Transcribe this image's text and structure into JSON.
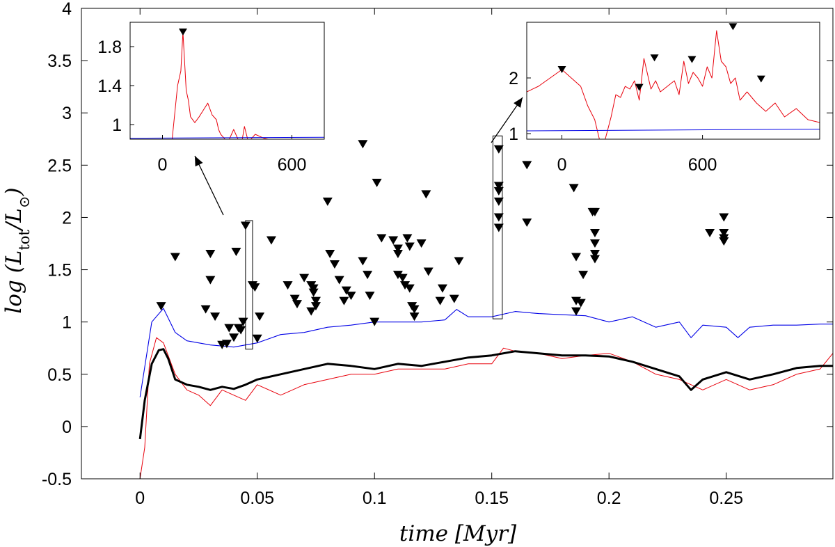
{
  "chart_data": {
    "type": "line",
    "xlabel": "time [Myr]",
    "ylabel": "log (L_tot/L_⊙)",
    "xlim": [
      -0.025,
      0.2955
    ],
    "ylim": [
      -0.5,
      4
    ],
    "xticks": [
      {
        "v": 0,
        "label": "0"
      },
      {
        "v": 0.05,
        "label": "0.05"
      },
      {
        "v": 0.1,
        "label": "0.1"
      },
      {
        "v": 0.15,
        "label": "0.15"
      },
      {
        "v": 0.2,
        "label": "0.2"
      },
      {
        "v": 0.25,
        "label": "0.25"
      }
    ],
    "yticks": [
      {
        "v": -0.5,
        "label": "-0.5"
      },
      {
        "v": 0,
        "label": "0"
      },
      {
        "v": 0.5,
        "label": "0.5"
      },
      {
        "v": 1,
        "label": "1"
      },
      {
        "v": 1.5,
        "label": "1.5"
      },
      {
        "v": 2,
        "label": "2"
      },
      {
        "v": 2.5,
        "label": "2.5"
      },
      {
        "v": 3,
        "label": "3"
      },
      {
        "v": 3.5,
        "label": "3.5"
      },
      {
        "v": 4,
        "label": "4"
      }
    ],
    "grid": false,
    "series": [
      {
        "color": "#e8000b",
        "x": [
          0.0,
          0.002,
          0.004,
          0.007,
          0.01,
          0.015,
          0.02,
          0.025,
          0.03,
          0.035,
          0.04,
          0.045,
          0.05,
          0.06,
          0.07,
          0.08,
          0.09,
          0.1,
          0.11,
          0.12,
          0.13,
          0.14,
          0.15,
          0.155,
          0.16,
          0.17,
          0.18,
          0.19,
          0.2,
          0.21,
          0.22,
          0.23,
          0.24,
          0.25,
          0.26,
          0.27,
          0.28,
          0.29,
          0.2955
        ],
        "y": [
          -0.5,
          -0.2,
          0.6,
          0.85,
          0.8,
          0.5,
          0.35,
          0.3,
          0.2,
          0.35,
          0.3,
          0.25,
          0.4,
          0.3,
          0.4,
          0.45,
          0.5,
          0.5,
          0.55,
          0.55,
          0.55,
          0.6,
          0.6,
          0.75,
          0.72,
          0.7,
          0.65,
          0.68,
          0.7,
          0.62,
          0.5,
          0.45,
          0.35,
          0.45,
          0.35,
          0.4,
          0.5,
          0.55,
          0.7
        ]
      },
      {
        "color": "#0000e6",
        "x": [
          0.0,
          0.005,
          0.01,
          0.015,
          0.02,
          0.03,
          0.04,
          0.05,
          0.06,
          0.07,
          0.08,
          0.09,
          0.1,
          0.11,
          0.12,
          0.13,
          0.135,
          0.14,
          0.15,
          0.16,
          0.17,
          0.18,
          0.19,
          0.2,
          0.21,
          0.22,
          0.23,
          0.235,
          0.24,
          0.25,
          0.255,
          0.26,
          0.27,
          0.28,
          0.29,
          0.2955
        ],
        "y": [
          0.28,
          1.0,
          1.13,
          0.9,
          0.82,
          0.78,
          0.76,
          0.8,
          0.88,
          0.9,
          0.95,
          0.97,
          1.0,
          1.0,
          1.0,
          1.02,
          1.12,
          1.05,
          1.05,
          1.1,
          1.08,
          1.07,
          1.06,
          1.0,
          1.05,
          0.95,
          1.0,
          0.85,
          0.97,
          0.95,
          0.85,
          0.95,
          0.97,
          0.97,
          0.98,
          0.98
        ]
      },
      {
        "color": "#000000",
        "x": [
          0.0,
          0.002,
          0.005,
          0.008,
          0.01,
          0.012,
          0.015,
          0.02,
          0.025,
          0.03,
          0.035,
          0.04,
          0.045,
          0.05,
          0.06,
          0.07,
          0.08,
          0.09,
          0.1,
          0.11,
          0.12,
          0.13,
          0.14,
          0.15,
          0.16,
          0.17,
          0.18,
          0.19,
          0.2,
          0.21,
          0.22,
          0.23,
          0.235,
          0.24,
          0.25,
          0.26,
          0.27,
          0.28,
          0.29,
          0.2955
        ],
        "y": [
          -0.12,
          0.25,
          0.6,
          0.73,
          0.74,
          0.65,
          0.45,
          0.4,
          0.38,
          0.35,
          0.38,
          0.36,
          0.4,
          0.45,
          0.5,
          0.55,
          0.6,
          0.58,
          0.55,
          0.6,
          0.58,
          0.62,
          0.66,
          0.68,
          0.72,
          0.7,
          0.68,
          0.68,
          0.67,
          0.62,
          0.55,
          0.48,
          0.35,
          0.45,
          0.52,
          0.45,
          0.5,
          0.56,
          0.58,
          0.58
        ]
      }
    ],
    "markers": [
      {
        "x": 0.009,
        "y": 1.15
      },
      {
        "x": 0.015,
        "y": 1.62
      },
      {
        "x": 0.028,
        "y": 1.12
      },
      {
        "x": 0.03,
        "y": 1.65
      },
      {
        "x": 0.03,
        "y": 1.4
      },
      {
        "x": 0.032,
        "y": 1.05
      },
      {
        "x": 0.035,
        "y": 0.78
      },
      {
        "x": 0.037,
        "y": 0.79
      },
      {
        "x": 0.038,
        "y": 0.94
      },
      {
        "x": 0.04,
        "y": 0.85
      },
      {
        "x": 0.041,
        "y": 1.67
      },
      {
        "x": 0.042,
        "y": 0.94
      },
      {
        "x": 0.043,
        "y": 0.92
      },
      {
        "x": 0.044,
        "y": 1.0
      },
      {
        "x": 0.045,
        "y": 1.92
      },
      {
        "x": 0.048,
        "y": 1.35
      },
      {
        "x": 0.049,
        "y": 1.33
      },
      {
        "x": 0.05,
        "y": 0.84
      },
      {
        "x": 0.051,
        "y": 1.05
      },
      {
        "x": 0.056,
        "y": 1.78
      },
      {
        "x": 0.063,
        "y": 1.35
      },
      {
        "x": 0.066,
        "y": 1.22
      },
      {
        "x": 0.067,
        "y": 1.17
      },
      {
        "x": 0.07,
        "y": 1.42
      },
      {
        "x": 0.073,
        "y": 1.35
      },
      {
        "x": 0.073,
        "y": 1.1
      },
      {
        "x": 0.074,
        "y": 1.32
      },
      {
        "x": 0.074,
        "y": 1.28
      },
      {
        "x": 0.075,
        "y": 1.15
      },
      {
        "x": 0.075,
        "y": 1.2
      },
      {
        "x": 0.08,
        "y": 2.15
      },
      {
        "x": 0.081,
        "y": 1.65
      },
      {
        "x": 0.083,
        "y": 1.55
      },
      {
        "x": 0.085,
        "y": 1.4
      },
      {
        "x": 0.087,
        "y": 1.2
      },
      {
        "x": 0.088,
        "y": 1.3
      },
      {
        "x": 0.09,
        "y": 1.25
      },
      {
        "x": 0.095,
        "y": 2.7
      },
      {
        "x": 0.095,
        "y": 1.58
      },
      {
        "x": 0.097,
        "y": 1.45
      },
      {
        "x": 0.098,
        "y": 1.25
      },
      {
        "x": 0.1,
        "y": 1.0
      },
      {
        "x": 0.101,
        "y": 2.33
      },
      {
        "x": 0.103,
        "y": 1.8
      },
      {
        "x": 0.108,
        "y": 1.78
      },
      {
        "x": 0.11,
        "y": 1.7
      },
      {
        "x": 0.11,
        "y": 1.65
      },
      {
        "x": 0.11,
        "y": 1.45
      },
      {
        "x": 0.112,
        "y": 1.42
      },
      {
        "x": 0.113,
        "y": 1.35
      },
      {
        "x": 0.114,
        "y": 1.8
      },
      {
        "x": 0.115,
        "y": 1.72
      },
      {
        "x": 0.115,
        "y": 1.32
      },
      {
        "x": 0.116,
        "y": 1.15
      },
      {
        "x": 0.117,
        "y": 1.05
      },
      {
        "x": 0.117,
        "y": 1.12
      },
      {
        "x": 0.12,
        "y": 1.75
      },
      {
        "x": 0.122,
        "y": 2.22
      },
      {
        "x": 0.123,
        "y": 1.48
      },
      {
        "x": 0.128,
        "y": 1.2
      },
      {
        "x": 0.129,
        "y": 1.32
      },
      {
        "x": 0.134,
        "y": 1.22
      },
      {
        "x": 0.136,
        "y": 1.58
      },
      {
        "x": 0.153,
        "y": 2.65
      },
      {
        "x": 0.153,
        "y": 2.3
      },
      {
        "x": 0.153,
        "y": 2.25
      },
      {
        "x": 0.153,
        "y": 2.15
      },
      {
        "x": 0.153,
        "y": 2.0
      },
      {
        "x": 0.153,
        "y": 1.9
      },
      {
        "x": 0.165,
        "y": 2.5
      },
      {
        "x": 0.165,
        "y": 1.95
      },
      {
        "x": 0.185,
        "y": 2.28
      },
      {
        "x": 0.186,
        "y": 1.62
      },
      {
        "x": 0.186,
        "y": 1.2
      },
      {
        "x": 0.186,
        "y": 1.1
      },
      {
        "x": 0.188,
        "y": 1.18
      },
      {
        "x": 0.189,
        "y": 1.45
      },
      {
        "x": 0.193,
        "y": 2.05
      },
      {
        "x": 0.194,
        "y": 2.05
      },
      {
        "x": 0.194,
        "y": 1.85
      },
      {
        "x": 0.194,
        "y": 1.75
      },
      {
        "x": 0.194,
        "y": 1.65
      },
      {
        "x": 0.194,
        "y": 1.6
      },
      {
        "x": 0.243,
        "y": 1.85
      },
      {
        "x": 0.249,
        "y": 2.0
      },
      {
        "x": 0.249,
        "y": 1.85
      },
      {
        "x": 0.249,
        "y": 1.8
      },
      {
        "x": 0.249,
        "y": 1.77
      }
    ],
    "highlight_boxes": [
      {
        "x0": 0.045,
        "x1": 0.048,
        "y0": 0.74,
        "y1": 1.97
      },
      {
        "x0": 0.1505,
        "x1": 0.1545,
        "y0": 1.03,
        "y1": 2.78
      }
    ],
    "insets": [
      {
        "xlim": [
          -150,
          750
        ],
        "ylim": [
          0.85,
          2.05
        ],
        "xticks": [
          {
            "v": 0,
            "label": "0"
          },
          {
            "v": 600,
            "label": "600"
          }
        ],
        "yticks": [
          {
            "v": 1,
            "label": "1"
          },
          {
            "v": 1.4,
            "label": "1.4"
          },
          {
            "v": 1.8,
            "label": "1.8"
          }
        ],
        "series": [
          {
            "color": "#e8000b",
            "x": [
              45,
              70,
              85,
              95,
              110,
              120,
              130,
              150,
              170,
              190,
              210,
              230,
              250,
              260,
              270,
              290,
              310,
              330,
              350,
              370,
              380,
              395,
              410,
              430,
              450,
              470,
              490
            ],
            "y": [
              0.85,
              1.4,
              1.55,
              1.95,
              1.35,
              1.25,
              1.08,
              1.02,
              1.08,
              1.15,
              1.22,
              1.1,
              1.05,
              0.95,
              0.9,
              0.85,
              0.85,
              0.95,
              0.85,
              0.85,
              0.98,
              0.85,
              0.85,
              0.9,
              0.88,
              0.86,
              0.85
            ]
          },
          {
            "color": "#0000e6",
            "x": [
              -150,
              750
            ],
            "y": [
              0.86,
              0.87
            ]
          }
        ],
        "markers": [
          {
            "x": 95,
            "y": 1.95
          }
        ]
      },
      {
        "xlim": [
          -150,
          1100
        ],
        "ylim": [
          0.9,
          3.0
        ],
        "xticks": [
          {
            "v": 0,
            "label": "0"
          },
          {
            "v": 600,
            "label": "600"
          }
        ],
        "yticks": [
          {
            "v": 1,
            "label": "1"
          },
          {
            "v": 2,
            "label": "2"
          }
        ],
        "series": [
          {
            "color": "#e8000b",
            "x": [
              -150,
              -100,
              -50,
              0,
              40,
              80,
              110,
              140,
              160,
              185,
              210,
              230,
              250,
              270,
              290,
              310,
              330,
              350,
              380,
              400,
              420,
              450,
              480,
              500,
              520,
              540,
              560,
              580,
              600,
              620,
              640,
              660,
              680,
              700,
              720,
              740,
              760,
              790,
              830,
              870,
              910,
              950,
              1000,
              1050,
              1100
            ],
            "y": [
              1.75,
              1.85,
              2.0,
              2.15,
              2.0,
              1.85,
              1.5,
              1.25,
              0.9,
              0.9,
              1.3,
              1.7,
              1.65,
              1.85,
              1.8,
              1.95,
              1.6,
              2.35,
              1.8,
              1.95,
              1.75,
              1.85,
              1.95,
              1.7,
              2.3,
              1.9,
              2.1,
              2.0,
              1.85,
              2.2,
              2.0,
              2.85,
              2.3,
              2.2,
              1.9,
              2.0,
              1.6,
              1.75,
              1.55,
              1.4,
              1.55,
              1.3,
              1.45,
              1.25,
              1.2
            ]
          },
          {
            "color": "#0000e6",
            "x": [
              -150,
              1100
            ],
            "y": [
              1.05,
              1.08
            ]
          }
        ],
        "markers": [
          {
            "x": 0,
            "y": 2.15
          },
          {
            "x": 330,
            "y": 1.83
          },
          {
            "x": 395,
            "y": 2.36
          },
          {
            "x": 555,
            "y": 2.33
          },
          {
            "x": 730,
            "y": 2.92
          },
          {
            "x": 850,
            "y": 1.98
          }
        ]
      }
    ]
  }
}
